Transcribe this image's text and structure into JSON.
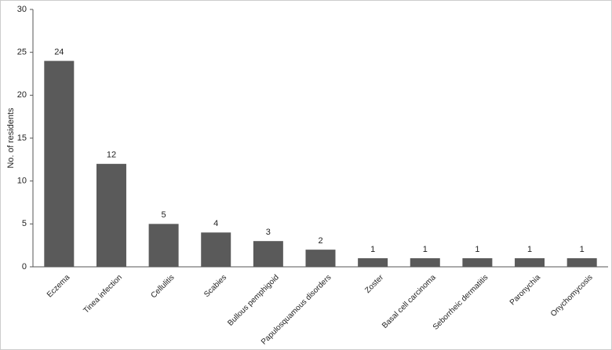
{
  "chart_data": {
    "type": "bar",
    "ylabel": "No. of residents",
    "categories": [
      "Eczema",
      "Tinea infection",
      "Cellulitis",
      "Scabies",
      "Bullous pemphigoid",
      "Papulosquamous disorders",
      "Zoster",
      "Basal cell carcinoma",
      "Seborrheic dermatitis",
      "Paronychia",
      "Onychomycosis"
    ],
    "values": [
      24,
      12,
      5,
      4,
      3,
      2,
      1,
      1,
      1,
      1,
      1
    ],
    "color": "#5a5a5a",
    "ylim": [
      0,
      30
    ],
    "yticks": [
      0,
      5,
      10,
      15,
      20,
      25,
      30
    ],
    "grid": false
  }
}
